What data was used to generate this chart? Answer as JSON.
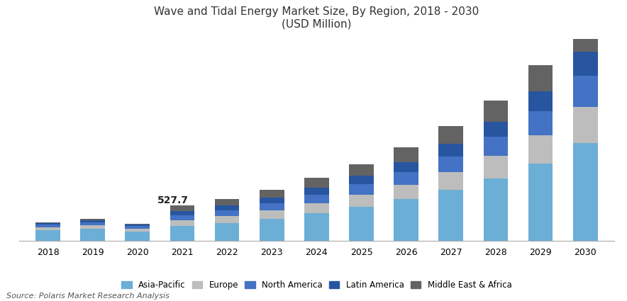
{
  "title_line1": "Wave and Tidal Energy Market Size, By Region, 2018 - 2030",
  "title_line2": "(USD Million)",
  "years": [
    2018,
    2019,
    2020,
    2021,
    2022,
    2023,
    2024,
    2025,
    2026,
    2027,
    2028,
    2029,
    2030
  ],
  "regions": [
    "Asia-Pacific",
    "Europe",
    "North America",
    "Latin America",
    "Middle East & Africa"
  ],
  "colors": [
    "#6baed6",
    "#bdbdbd",
    "#4472c4",
    "#2855a0",
    "#636363"
  ],
  "data": {
    "Asia-Pacific": [
      155,
      175,
      140,
      220,
      265,
      330,
      410,
      510,
      620,
      760,
      930,
      1150,
      1450
    ],
    "Europe": [
      45,
      55,
      42,
      85,
      100,
      120,
      145,
      175,
      215,
      265,
      330,
      420,
      540
    ],
    "North America": [
      38,
      48,
      35,
      75,
      88,
      105,
      128,
      155,
      188,
      232,
      285,
      360,
      460
    ],
    "Latin America": [
      22,
      28,
      22,
      60,
      70,
      85,
      103,
      125,
      150,
      185,
      228,
      288,
      368
    ],
    "Middle East & Africa": [
      13,
      17,
      12,
      88,
      103,
      123,
      148,
      178,
      213,
      260,
      318,
      400,
      510
    ]
  },
  "annotation_year": 2021,
  "annotation_text": "527.7",
  "source_text": "Source: Polaris Market Research Analysis",
  "bar_width": 0.55,
  "ylim": [
    0,
    3000
  ],
  "background_color": "#ffffff"
}
